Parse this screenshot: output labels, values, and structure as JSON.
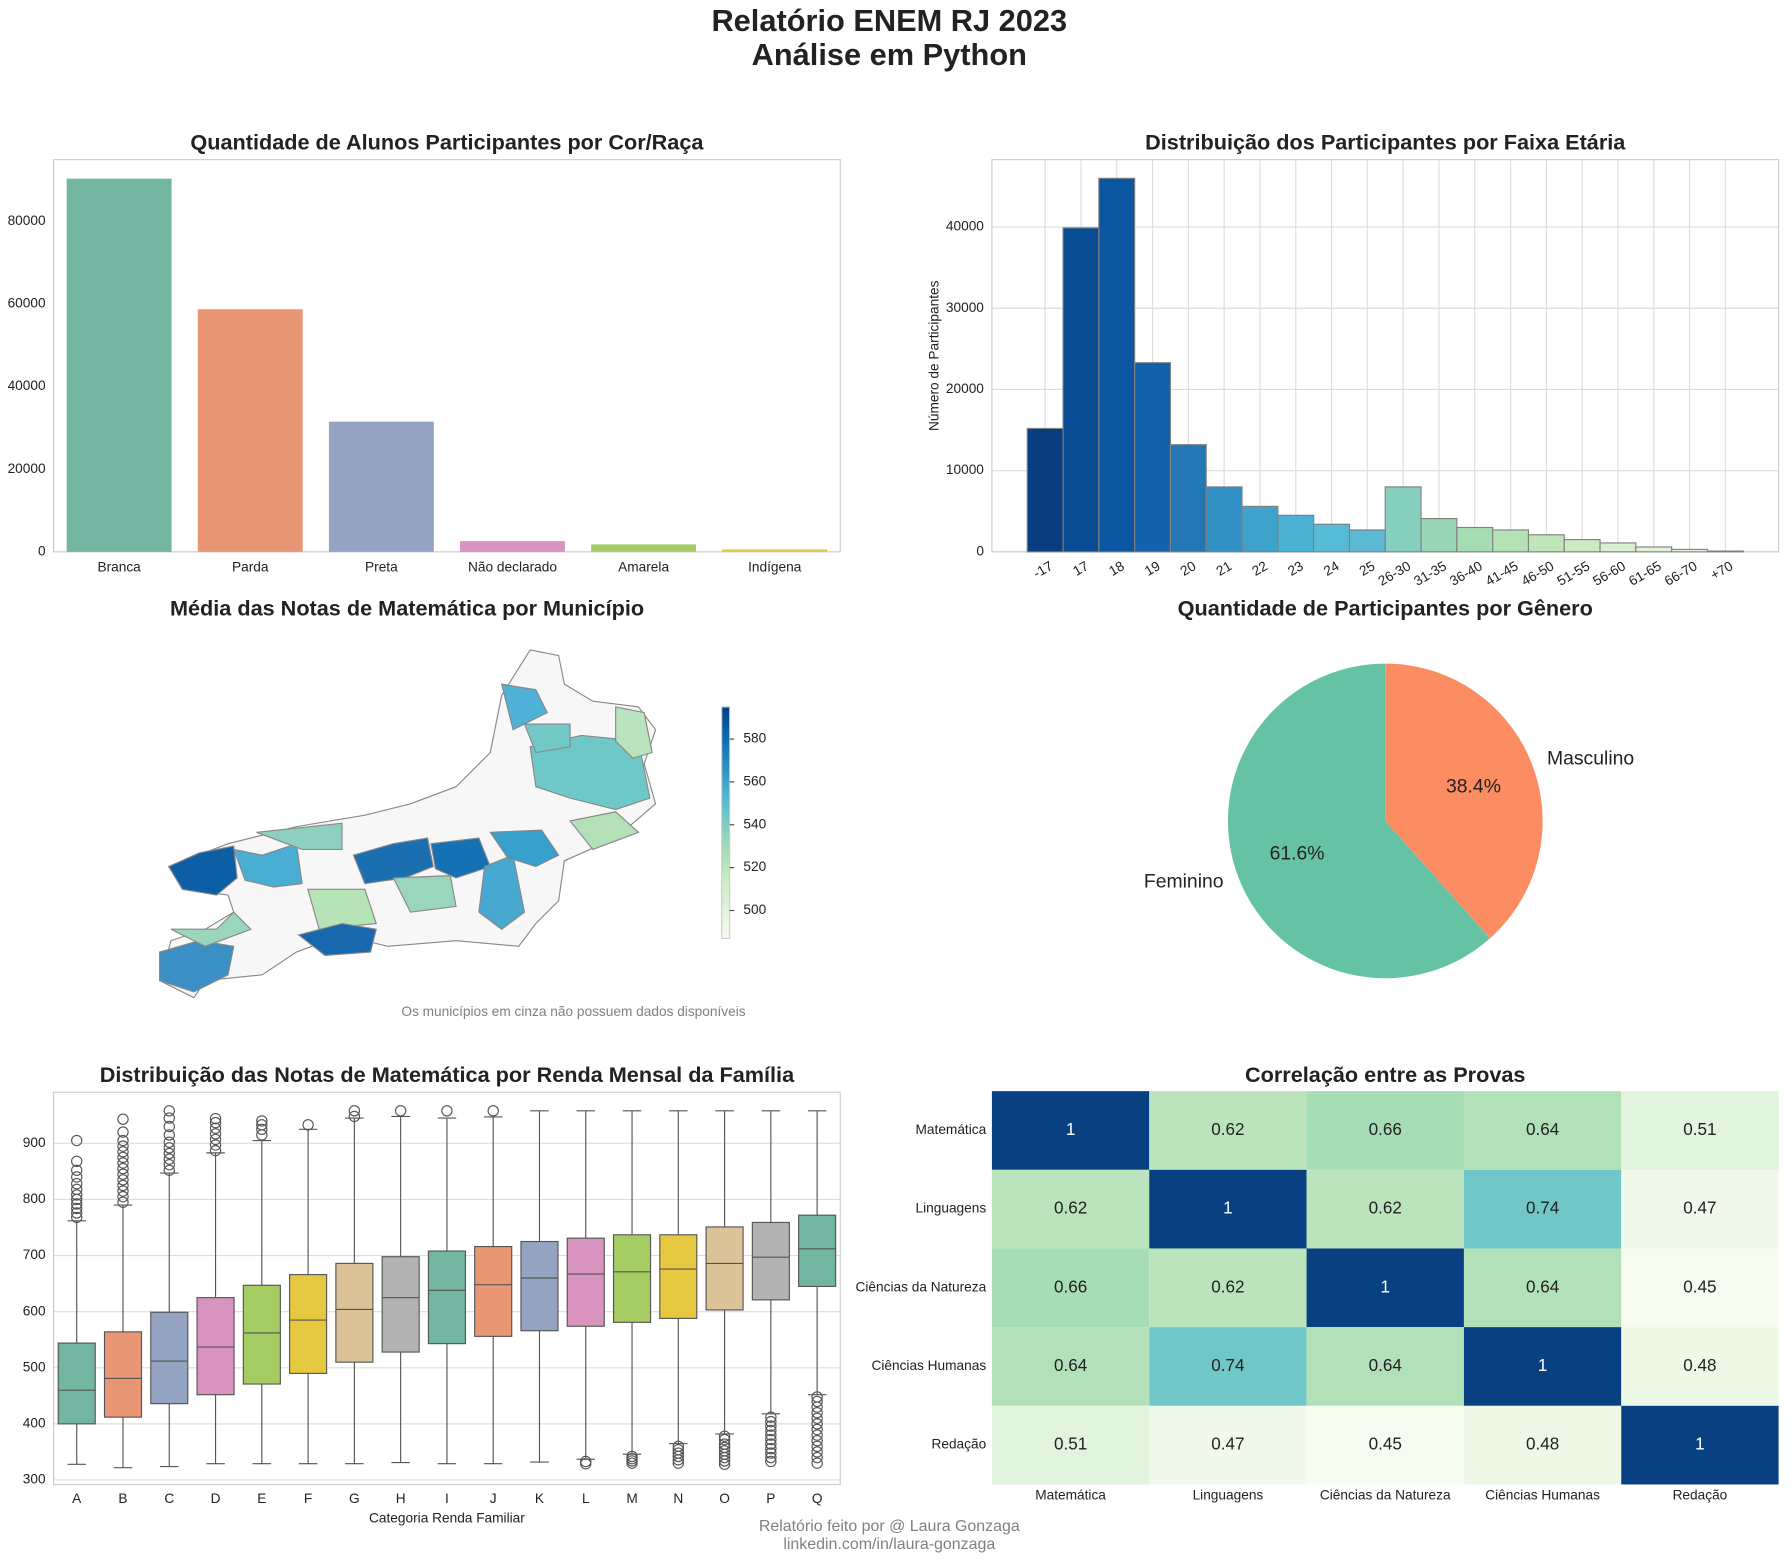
{
  "title": [
    "Relatório ENEM RJ 2023",
    "Análise em Python"
  ],
  "footer": [
    "Relatório feito por @ Laura Gonzaga",
    "linkedin.com/in/laura-gonzaga"
  ],
  "chart_data": [
    {
      "type": "bar",
      "title": "Quantidade de Alunos Participantes por Cor/Raça",
      "categories": [
        "Branca",
        "Parda",
        "Preta",
        "Não declarado",
        "Amarela",
        "Indígena"
      ],
      "values": [
        90300,
        58700,
        31500,
        2600,
        1800,
        600
      ],
      "colors": [
        "#72b6a1",
        "#e99675",
        "#95a3c3",
        "#d893be",
        "#a5cc63",
        "#e6c740"
      ],
      "ylim": [
        0,
        94900
      ],
      "yticks": [
        0,
        20000,
        40000,
        60000,
        80000
      ],
      "grid": false
    },
    {
      "type": "bar",
      "title": "Distribuição dos Participantes por Faixa Etária",
      "ylabel": "Número de Participantes",
      "categories": [
        "-17",
        "17",
        "18",
        "19",
        "20",
        "21",
        "22",
        "23",
        "24",
        "25",
        "26-30",
        "31-35",
        "36-40",
        "41-45",
        "46-50",
        "51-55",
        "56-60",
        "61-65",
        "66-70",
        "+70"
      ],
      "values": [
        15200,
        39900,
        46000,
        23300,
        13200,
        8000,
        5600,
        4500,
        3400,
        2700,
        8000,
        4100,
        3000,
        2700,
        2100,
        1500,
        1100,
        600,
        300,
        100
      ],
      "colors": [
        "#083d7f",
        "#0b4d94",
        "#0a56a0",
        "#1361aa",
        "#2277b4",
        "#3090c4",
        "#3ea2cb",
        "#4ab1d2",
        "#56bbd6",
        "#5cb9d5",
        "#87d0c0",
        "#98d6b6",
        "#a6dcb2",
        "#b4e2b4",
        "#bfe6b8",
        "#cbebc5",
        "#d6efce",
        "#e0f3d8",
        "#e9f6e2",
        "#f1f9ec"
      ],
      "edgecolor": "#808080",
      "xtick_rotation": 30,
      "ylim": [
        0,
        48300
      ],
      "yticks": [
        0,
        10000,
        20000,
        30000,
        40000
      ],
      "grid": true
    },
    {
      "type": "map",
      "title": "Média das Notas de Matemática por Município",
      "cmap": [
        "#f7fcf0",
        "#e0f3db",
        "#ccebc5",
        "#a8ddb5",
        "#7bccc4",
        "#4eb3d3",
        "#2b8cbe",
        "#0868ac",
        "#084081"
      ],
      "clim": [
        487,
        595
      ],
      "cticks": [
        500,
        520,
        540,
        560,
        580
      ],
      "note": "Os municípios em cinza não possuem dados disponíveis"
    },
    {
      "type": "pie",
      "title": "Quantidade de Participantes por Gênero",
      "categories": [
        "Feminino",
        "Masculino"
      ],
      "values": [
        61.6,
        38.4
      ],
      "value_labels": [
        "61.6%",
        "38.4%"
      ],
      "colors": [
        "#66c2a5",
        "#fc8d62"
      ],
      "startangle": 90
    },
    {
      "type": "box",
      "title": "Distribuição das Notas de Matemática por Renda Mensal da Família",
      "xlabel": "Categoria Renda Familiar",
      "categories": [
        "A",
        "B",
        "C",
        "D",
        "E",
        "F",
        "G",
        "H",
        "I",
        "J",
        "K",
        "L",
        "M",
        "N",
        "O",
        "P",
        "Q"
      ],
      "boxes": [
        {
          "whisker_low": 328,
          "q1": 400,
          "median": 460,
          "q3": 544,
          "whisker_high": 762,
          "outliers": [
            768,
            776,
            784,
            792,
            800,
            808,
            818,
            828,
            840,
            852,
            868,
            905
          ]
        },
        {
          "whisker_low": 322,
          "q1": 412,
          "median": 481,
          "q3": 564,
          "whisker_high": 790,
          "outliers": [
            795,
            805,
            815,
            825,
            835,
            845,
            855,
            865,
            875,
            885,
            895,
            905,
            920,
            943
          ]
        },
        {
          "whisker_low": 324,
          "q1": 436,
          "median": 512,
          "q3": 599,
          "whisker_high": 847,
          "outliers": [
            852,
            862,
            872,
            882,
            892,
            902,
            915,
            930,
            945,
            958
          ]
        },
        {
          "whisker_low": 329,
          "q1": 452,
          "median": 537,
          "q3": 625,
          "whisker_high": 883,
          "outliers": [
            887,
            897,
            907,
            917,
            927,
            937,
            944
          ]
        },
        {
          "whisker_low": 329,
          "q1": 471,
          "median": 562,
          "q3": 647,
          "whisker_high": 905,
          "outliers": [
            915,
            925,
            933,
            940
          ]
        },
        {
          "whisker_low": 329,
          "q1": 490,
          "median": 585,
          "q3": 666,
          "whisker_high": 925,
          "outliers": [
            933
          ]
        },
        {
          "whisker_low": 329,
          "q1": 510,
          "median": 604,
          "q3": 686,
          "whisker_high": 945,
          "outliers": [
            948,
            958
          ]
        },
        {
          "whisker_low": 331,
          "q1": 528,
          "median": 625,
          "q3": 698,
          "whisker_high": 948,
          "outliers": [
            958
          ]
        },
        {
          "whisker_low": 329,
          "q1": 543,
          "median": 638,
          "q3": 708,
          "whisker_high": 945,
          "outliers": [
            958
          ]
        },
        {
          "whisker_low": 329,
          "q1": 556,
          "median": 648,
          "q3": 716,
          "whisker_high": 947,
          "outliers": [
            958
          ]
        },
        {
          "whisker_low": 332,
          "q1": 566,
          "median": 660,
          "q3": 725,
          "whisker_high": 958,
          "outliers": []
        },
        {
          "whisker_low": 337,
          "q1": 574,
          "median": 667,
          "q3": 731,
          "whisker_high": 958,
          "outliers": [
            329,
            333
          ]
        },
        {
          "whisker_low": 346,
          "q1": 581,
          "median": 671,
          "q3": 737,
          "whisker_high": 958,
          "outliers": [
            330,
            334,
            338,
            342
          ]
        },
        {
          "whisker_low": 365,
          "q1": 588,
          "median": 676,
          "q3": 737,
          "whisker_high": 958,
          "outliers": [
            330,
            336,
            342,
            348,
            354,
            360
          ]
        },
        {
          "whisker_low": 382,
          "q1": 603,
          "median": 686,
          "q3": 751,
          "whisker_high": 958,
          "outliers": [
            328,
            334,
            340,
            346,
            352,
            358,
            364,
            372,
            378
          ]
        },
        {
          "whisker_low": 418,
          "q1": 621,
          "median": 697,
          "q3": 759,
          "whisker_high": 958,
          "outliers": [
            333,
            340,
            348,
            356,
            364,
            372,
            380,
            388,
            396,
            404,
            412
          ]
        },
        {
          "whisker_low": 452,
          "q1": 645,
          "median": 712,
          "q3": 772,
          "whisker_high": 958,
          "outliers": [
            330,
            340,
            350,
            360,
            370,
            380,
            390,
            400,
            410,
            420,
            430,
            440,
            448
          ]
        }
      ],
      "colors": [
        "#72b6a1",
        "#e99675",
        "#95a3c3",
        "#d893be",
        "#a5cc63",
        "#e6c740",
        "#dbc298",
        "#b3b3b3",
        "#72b6a1",
        "#e99675",
        "#95a3c3",
        "#d893be",
        "#a5cc63",
        "#e6c740",
        "#dbc298",
        "#b3b3b3",
        "#72b6a1"
      ],
      "ylim": [
        292,
        991
      ],
      "yticks": [
        300,
        400,
        500,
        600,
        700,
        800,
        900
      ],
      "grid": true
    },
    {
      "type": "heatmap",
      "title": "Correlação entre as Provas",
      "rows": [
        "Matemática",
        "Linguagens",
        "Ciências da Natureza",
        "Ciências Humanas",
        "Redação"
      ],
      "columns": [
        "Matemática",
        "Linguagens",
        "Ciências da Natureza",
        "Ciências Humanas",
        "Redação"
      ],
      "values": [
        [
          1,
          0.62,
          0.66,
          0.64,
          0.51
        ],
        [
          0.62,
          1,
          0.62,
          0.74,
          0.47
        ],
        [
          0.66,
          0.62,
          1,
          0.64,
          0.45
        ],
        [
          0.64,
          0.74,
          0.64,
          1,
          0.48
        ],
        [
          0.51,
          0.47,
          0.45,
          0.48,
          1
        ]
      ],
      "cmap": [
        "#f7fcf0",
        "#e0f3db",
        "#ccebc5",
        "#a8ddb5",
        "#7bccc4",
        "#4eb3d3",
        "#2b8cbe",
        "#0868ac",
        "#084081"
      ],
      "vlim": [
        0.45,
        1
      ]
    }
  ]
}
